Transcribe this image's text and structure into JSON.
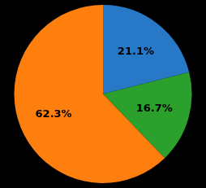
{
  "chart_data": {
    "type": "pie",
    "values": [
      21.1,
      16.7,
      62.3
    ],
    "value_labels": [
      "21.1%",
      "16.7%",
      "62.3%"
    ],
    "colors": [
      "#2878c8",
      "#2ca02c",
      "#ff7f0e"
    ],
    "data_labels": true
  }
}
